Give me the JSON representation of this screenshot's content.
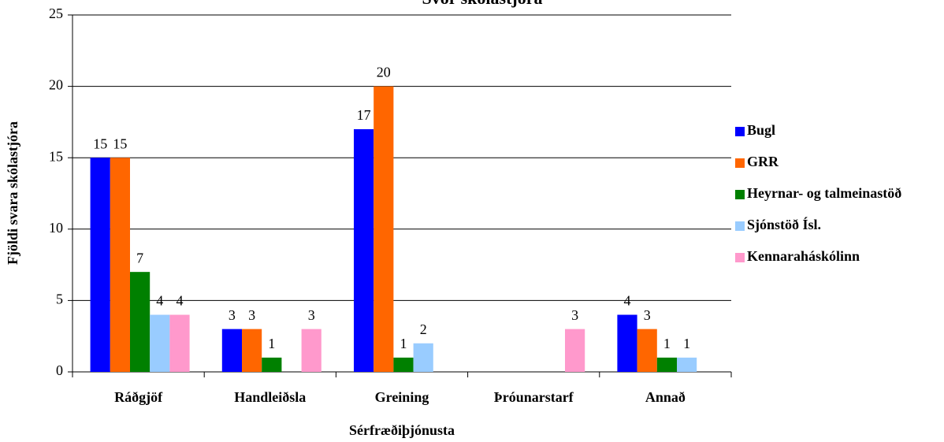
{
  "chart_data": {
    "type": "bar",
    "title": "Svör skólastjóra",
    "x_label": "Sérfræðiþjónusta",
    "y_label": "Fjöldi svara skólastjóra",
    "categories": [
      "Ráðgjöf",
      "Handleiðsla",
      "Greining",
      "Þróunarstarf",
      "Annað"
    ],
    "series": [
      {
        "name": "Bugl",
        "color": "#0000ff",
        "values": [
          15,
          3,
          17,
          null,
          4
        ]
      },
      {
        "name": "GRR",
        "color": "#ff6600",
        "values": [
          15,
          3,
          20,
          null,
          3
        ]
      },
      {
        "name": "Heyrnar- og talmeinastöð",
        "color": "#008000",
        "values": [
          7,
          1,
          1,
          null,
          1
        ]
      },
      {
        "name": "Sjónstöð Ísl.",
        "color": "#99ccff",
        "values": [
          4,
          null,
          2,
          null,
          1
        ]
      },
      {
        "name": "Kennaraháskólinn",
        "color": "#ff99cc",
        "values": [
          4,
          3,
          null,
          3,
          null
        ]
      }
    ],
    "ylim": [
      0,
      25
    ],
    "yticks": [
      0,
      5,
      10,
      15,
      20,
      25
    ],
    "grid": true,
    "legend": "right"
  }
}
